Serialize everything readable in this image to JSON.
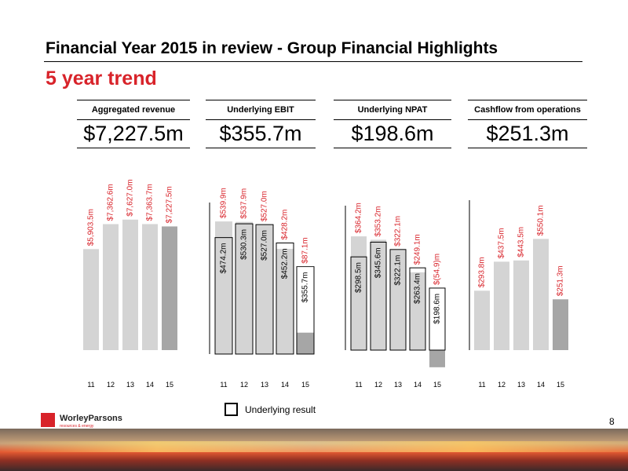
{
  "header": {
    "title": "Financial Year 2015 in review - Group Financial Highlights",
    "subtitle": "5 year trend"
  },
  "colors": {
    "accent": "#d8232a",
    "bar_light": "#d4d4d4",
    "bar_dark": "#a6a6a6",
    "bar_negative": "#a6a6a6"
  },
  "panels": [
    {
      "heading": "Aggregated revenue",
      "headline_value": "$7,227.5m"
    },
    {
      "heading": "Underlying EBIT",
      "headline_value": "$355.7m"
    },
    {
      "heading": "Underlying NPAT",
      "headline_value": "$198.6m"
    },
    {
      "heading": "Cashflow from operations",
      "headline_value": "$251.3m"
    }
  ],
  "legend": {
    "label": "Underlying result"
  },
  "footer": {
    "page_number": "8",
    "logo_text": "WorleyParsons",
    "logo_tagline": "resources & energy"
  },
  "chart_data": [
    {
      "type": "bar",
      "title": "Aggregated revenue",
      "categories": [
        "11",
        "12",
        "13",
        "14",
        "15"
      ],
      "values": [
        5903.5,
        7362.6,
        7627.0,
        7363.7,
        7227.5
      ],
      "labels": [
        "$5,903.5m",
        "$7,362.6m",
        "$7,627.0m",
        "$7,363.7m",
        "$7,227.5m"
      ],
      "ylim": [
        0,
        10000
      ]
    },
    {
      "type": "bar",
      "title": "Underlying EBIT",
      "categories": [
        "11",
        "12",
        "13",
        "14",
        "15"
      ],
      "series": [
        {
          "values": [
            539.9,
            537.9,
            527.0,
            428.2,
            87.1
          ],
          "labels": [
            "$539.9m",
            "$537.9m",
            "$527.0m",
            "$428.2m",
            "$87.1m"
          ]
        },
        {
          "name": "Underlying result",
          "values": [
            474.2,
            530.3,
            527.0,
            452.2,
            355.7
          ],
          "labels": [
            "$474.2m",
            "$530.3m",
            "$527.0m",
            "$452.2m",
            "$355.7m"
          ]
        }
      ],
      "ylim": [
        0,
        700
      ]
    },
    {
      "type": "bar",
      "title": "Underlying NPAT",
      "categories": [
        "11",
        "12",
        "13",
        "14",
        "15"
      ],
      "series": [
        {
          "values": [
            364.2,
            353.2,
            322.1,
            249.1,
            -54.9
          ],
          "labels": [
            "$364.2m",
            "$353.2m",
            "$322.1m",
            "$249.1m",
            "$(54.9)m"
          ]
        },
        {
          "name": "Underlying result",
          "values": [
            298.5,
            345.6,
            322.1,
            263.4,
            198.6
          ],
          "labels": [
            "$298.5m",
            "$345.6m",
            "$322.1m",
            "$263.4m",
            "$198.6m"
          ]
        }
      ],
      "ylim": [
        -60,
        480
      ]
    },
    {
      "type": "bar",
      "title": "Cashflow from operations",
      "categories": [
        "11",
        "12",
        "13",
        "14",
        "15"
      ],
      "values": [
        293.8,
        437.5,
        443.5,
        550.1,
        251.3
      ],
      "labels": [
        "$293.8m",
        "$437.5m",
        "$443.5m",
        "$550.1m",
        "$251.3m"
      ],
      "ylim": [
        0,
        800
      ]
    }
  ]
}
